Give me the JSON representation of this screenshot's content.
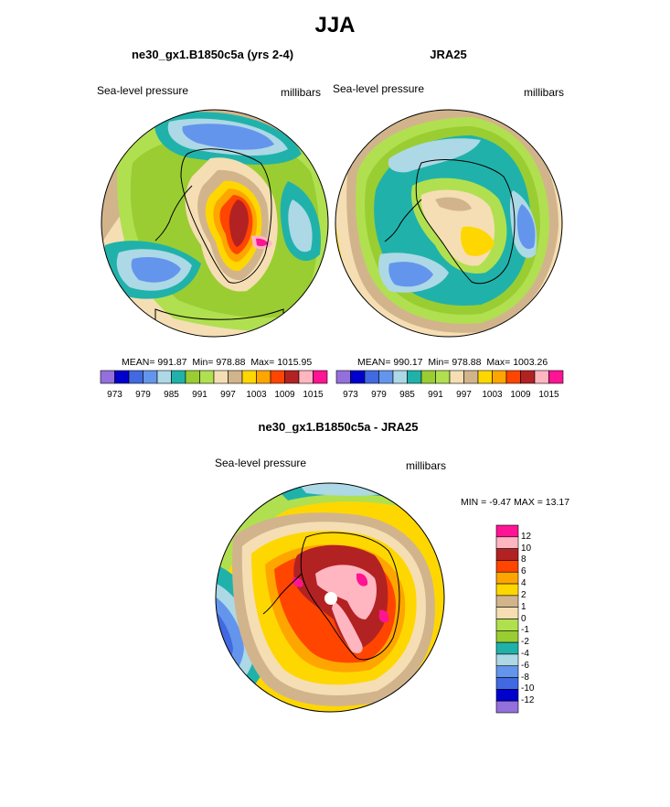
{
  "figure": {
    "title": "JJA"
  },
  "chart_data": [
    {
      "type": "heatmap",
      "title": "ne30_gx1.B1850c5a (yrs 2-4)",
      "left_label": "Sea-level pressure",
      "right_label": "millibars",
      "stats": {
        "mean_label": "MEAN=",
        "mean": "991.87",
        "min_label": "Min=",
        "min": "978.88",
        "max_label": "Max=",
        "max": "1015.95"
      },
      "contour_levels": [
        973,
        976,
        979,
        982,
        985,
        988,
        991,
        994,
        997,
        1000,
        1003,
        1006,
        1009,
        1012,
        1015
      ],
      "colorbar_ticks": [
        "973",
        "979",
        "985",
        "991",
        "997",
        "1003",
        "1009",
        "1015"
      ]
    },
    {
      "type": "heatmap",
      "title": "JRA25",
      "left_label": "Sea-level pressure",
      "right_label": "millibars",
      "stats": {
        "mean_label": "MEAN=",
        "mean": "990.17",
        "min_label": "Min=",
        "min": "978.88",
        "max_label": "Max=",
        "max": "1003.26"
      },
      "contour_levels": [
        973,
        976,
        979,
        982,
        985,
        988,
        991,
        994,
        997,
        1000,
        1003,
        1006,
        1009,
        1012,
        1015
      ],
      "colorbar_ticks": [
        "973",
        "979",
        "985",
        "991",
        "997",
        "1003",
        "1009",
        "1015"
      ]
    },
    {
      "type": "heatmap",
      "title": "ne30_gx1.B1850c5a - JRA25",
      "left_label": "Sea-level pressure",
      "right_label": "millibars",
      "minmax_text": "MIN =  -9.47 MAX =  13.17",
      "contour_levels": [
        -12,
        -10,
        -8,
        -6,
        -4,
        -2,
        -1,
        0,
        1,
        2,
        4,
        6,
        8,
        10,
        12
      ],
      "colorbar_ticks": [
        "12",
        "10",
        "8",
        "6",
        "4",
        "2",
        "1",
        "0",
        "-1",
        "-2",
        "-4",
        "-6",
        "-8",
        "-10",
        "-12"
      ]
    }
  ],
  "palette": [
    "#9370db",
    "#0000cd",
    "#4169e1",
    "#6495ed",
    "#add8e6",
    "#20b2aa",
    "#9acd32",
    "#b0e050",
    "#f5deb3",
    "#d2b48c",
    "#ffd700",
    "#ffa500",
    "#ff4500",
    "#b22222",
    "#ffb6c1",
    "#ff1493"
  ]
}
